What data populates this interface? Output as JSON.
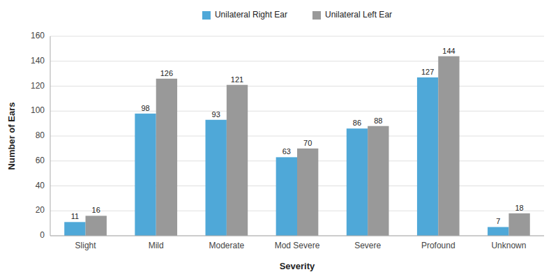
{
  "chart_data": {
    "type": "bar",
    "xlabel": "Severity",
    "ylabel": "Number of Ears",
    "categories": [
      "Slight",
      "Mild",
      "Moderate",
      "Mod Severe",
      "Severe",
      "Profound",
      "Unknown"
    ],
    "series": [
      {
        "name": "Unilateral Right Ear",
        "color": "#4fa8d8",
        "values": [
          11,
          98,
          93,
          63,
          86,
          127,
          7
        ]
      },
      {
        "name": "Unilateral Left Ear",
        "color": "#999999",
        "values": [
          16,
          126,
          121,
          70,
          88,
          144,
          18
        ]
      }
    ],
    "ylim": [
      0,
      160
    ],
    "yticks": [
      0,
      20,
      40,
      60,
      80,
      100,
      120,
      140,
      160
    ],
    "grid": true,
    "legend": "top",
    "data_labels": true
  }
}
